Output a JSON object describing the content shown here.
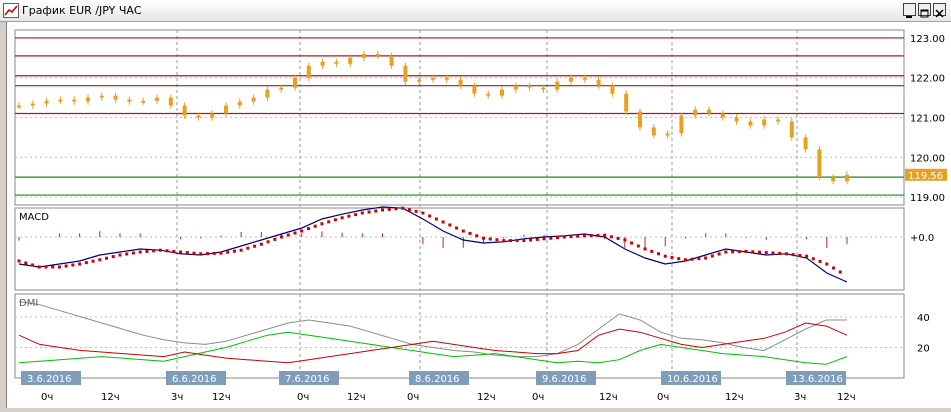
{
  "window": {
    "title": "График EUR /JPY  ЧАС"
  },
  "controls": {
    "minimize": "_",
    "restore": "□",
    "close": "X"
  },
  "colors": {
    "candle": "#e8a020",
    "resistance": "#b01818",
    "support": "#1a8a1a",
    "macd_line": "#00007a",
    "signal_line": "#cc0000",
    "histogram": "#cc2020",
    "dmi_adx": "#8c8c8c",
    "dmi_plus": "#00c000",
    "dmi_minus": "#cc0000",
    "date_label_bg": "#7f9db9",
    "price_badge": "#e8a020"
  },
  "price_panel": {
    "y_ticks": [
      "123.00",
      "122.00",
      "121.00",
      "120.00",
      "119.00"
    ],
    "current_price": "119.56"
  },
  "macd_panel": {
    "label": "MACD",
    "zero_label": "+0.0"
  },
  "dmi_panel": {
    "label": "DMI",
    "y_ticks": [
      "40",
      "20"
    ]
  },
  "x_axis": {
    "dates": [
      "3.6.2016",
      "6.6.2016",
      "7.6.2016",
      "8.6.2016",
      "9.6.2016",
      "10.6.2016",
      "13.6.2016"
    ],
    "hour_labels": [
      "0ч",
      "12ч",
      "3ч",
      "12ч",
      "0ч",
      "12ч",
      "0ч",
      "12ч",
      "0ч",
      "12ч",
      "0ч",
      "12ч",
      "3ч",
      "12ч"
    ]
  },
  "chart_data": {
    "type": "line",
    "title": "График EUR /JPY  ЧАС",
    "price": {
      "ylim": [
        118.8,
        123.2
      ],
      "horizontal_levels": {
        "resistance": [
          123.0,
          122.55,
          122.05,
          121.8,
          121.1
        ],
        "support": [
          119.5,
          119.05
        ]
      },
      "last": 119.56,
      "series": [
        {
          "name": "EUR/JPY",
          "values": [
            121.3,
            121.35,
            121.42,
            121.45,
            121.4,
            121.5,
            121.55,
            121.45,
            121.4,
            121.42,
            121.5,
            121.3,
            121.05,
            121.0,
            121.1,
            121.3,
            121.4,
            121.5,
            121.7,
            121.75,
            122.0,
            122.3,
            122.4,
            122.35,
            122.5,
            122.6,
            122.55,
            122.3,
            121.9,
            121.95,
            122.0,
            121.95,
            121.8,
            121.6,
            121.55,
            121.7,
            121.8,
            121.75,
            121.7,
            121.9,
            122.0,
            121.95,
            121.8,
            121.6,
            121.15,
            120.75,
            120.55,
            120.6,
            121.05,
            121.2,
            121.1,
            121.0,
            120.9,
            120.8,
            120.95,
            120.9,
            120.5,
            120.2,
            119.5,
            119.4,
            119.56
          ]
        }
      ]
    },
    "macd": {
      "zero": 0.0,
      "series": [
        {
          "name": "MACD",
          "values": [
            -0.45,
            -0.5,
            -0.45,
            -0.4,
            -0.3,
            -0.25,
            -0.2,
            -0.22,
            -0.28,
            -0.3,
            -0.25,
            -0.15,
            -0.05,
            0.05,
            0.15,
            0.3,
            0.38,
            0.45,
            0.5,
            0.48,
            0.3,
            0.1,
            -0.05,
            -0.1,
            -0.08,
            -0.03,
            0.0,
            0.02,
            0.05,
            0.0,
            -0.2,
            -0.35,
            -0.45,
            -0.4,
            -0.3,
            -0.2,
            -0.25,
            -0.3,
            -0.28,
            -0.35,
            -0.6,
            -0.75
          ]
        },
        {
          "name": "Signal",
          "values": [
            -0.4,
            -0.5,
            -0.5,
            -0.45,
            -0.38,
            -0.3,
            -0.25,
            -0.22,
            -0.25,
            -0.28,
            -0.27,
            -0.22,
            -0.12,
            0.0,
            0.1,
            0.22,
            0.32,
            0.4,
            0.45,
            0.48,
            0.4,
            0.25,
            0.1,
            -0.02,
            -0.06,
            -0.06,
            -0.03,
            0.0,
            0.02,
            0.03,
            -0.05,
            -0.2,
            -0.32,
            -0.38,
            -0.35,
            -0.25,
            -0.24,
            -0.26,
            -0.28,
            -0.32,
            -0.45,
            -0.65
          ]
        }
      ],
      "histogram": [
        -0.05,
        0.0,
        0.05,
        0.05,
        0.08,
        0.05,
        0.05,
        0.0,
        -0.03,
        -0.02,
        0.02,
        0.07,
        0.07,
        0.05,
        0.05,
        0.08,
        0.06,
        0.05,
        0.05,
        0.0,
        -0.1,
        -0.15,
        -0.15,
        -0.08,
        -0.02,
        0.03,
        0.03,
        0.02,
        0.03,
        -0.03,
        -0.15,
        -0.15,
        -0.13,
        -0.02,
        0.05,
        0.05,
        -0.01,
        -0.04,
        0.0,
        -0.03,
        -0.15,
        -0.1
      ]
    },
    "dmi": {
      "ylim": [
        0,
        55
      ],
      "series": [
        {
          "name": "ADX",
          "values": [
            50,
            48,
            44,
            40,
            36,
            32,
            28,
            25,
            23,
            22,
            24,
            28,
            32,
            36,
            38,
            36,
            34,
            30,
            26,
            22,
            20,
            18,
            17,
            15,
            14,
            14,
            16,
            22,
            32,
            42,
            38,
            30,
            26,
            25,
            23,
            20,
            18,
            25,
            32,
            38,
            38
          ]
        },
        {
          "name": "+DI",
          "values": [
            10,
            11,
            12,
            13,
            14,
            13,
            12,
            11,
            14,
            17,
            20,
            24,
            28,
            30,
            28,
            26,
            24,
            22,
            20,
            18,
            16,
            14,
            15,
            16,
            14,
            12,
            10,
            11,
            10,
            12,
            18,
            22,
            20,
            18,
            16,
            15,
            14,
            12,
            10,
            9,
            14
          ]
        },
        {
          "name": "-DI",
          "values": [
            28,
            22,
            20,
            18,
            17,
            16,
            15,
            14,
            17,
            15,
            13,
            12,
            11,
            10,
            12,
            14,
            16,
            18,
            20,
            22,
            24,
            22,
            20,
            18,
            17,
            16,
            16,
            18,
            28,
            32,
            30,
            26,
            22,
            20,
            22,
            24,
            26,
            30,
            36,
            34,
            28
          ]
        }
      ]
    }
  }
}
